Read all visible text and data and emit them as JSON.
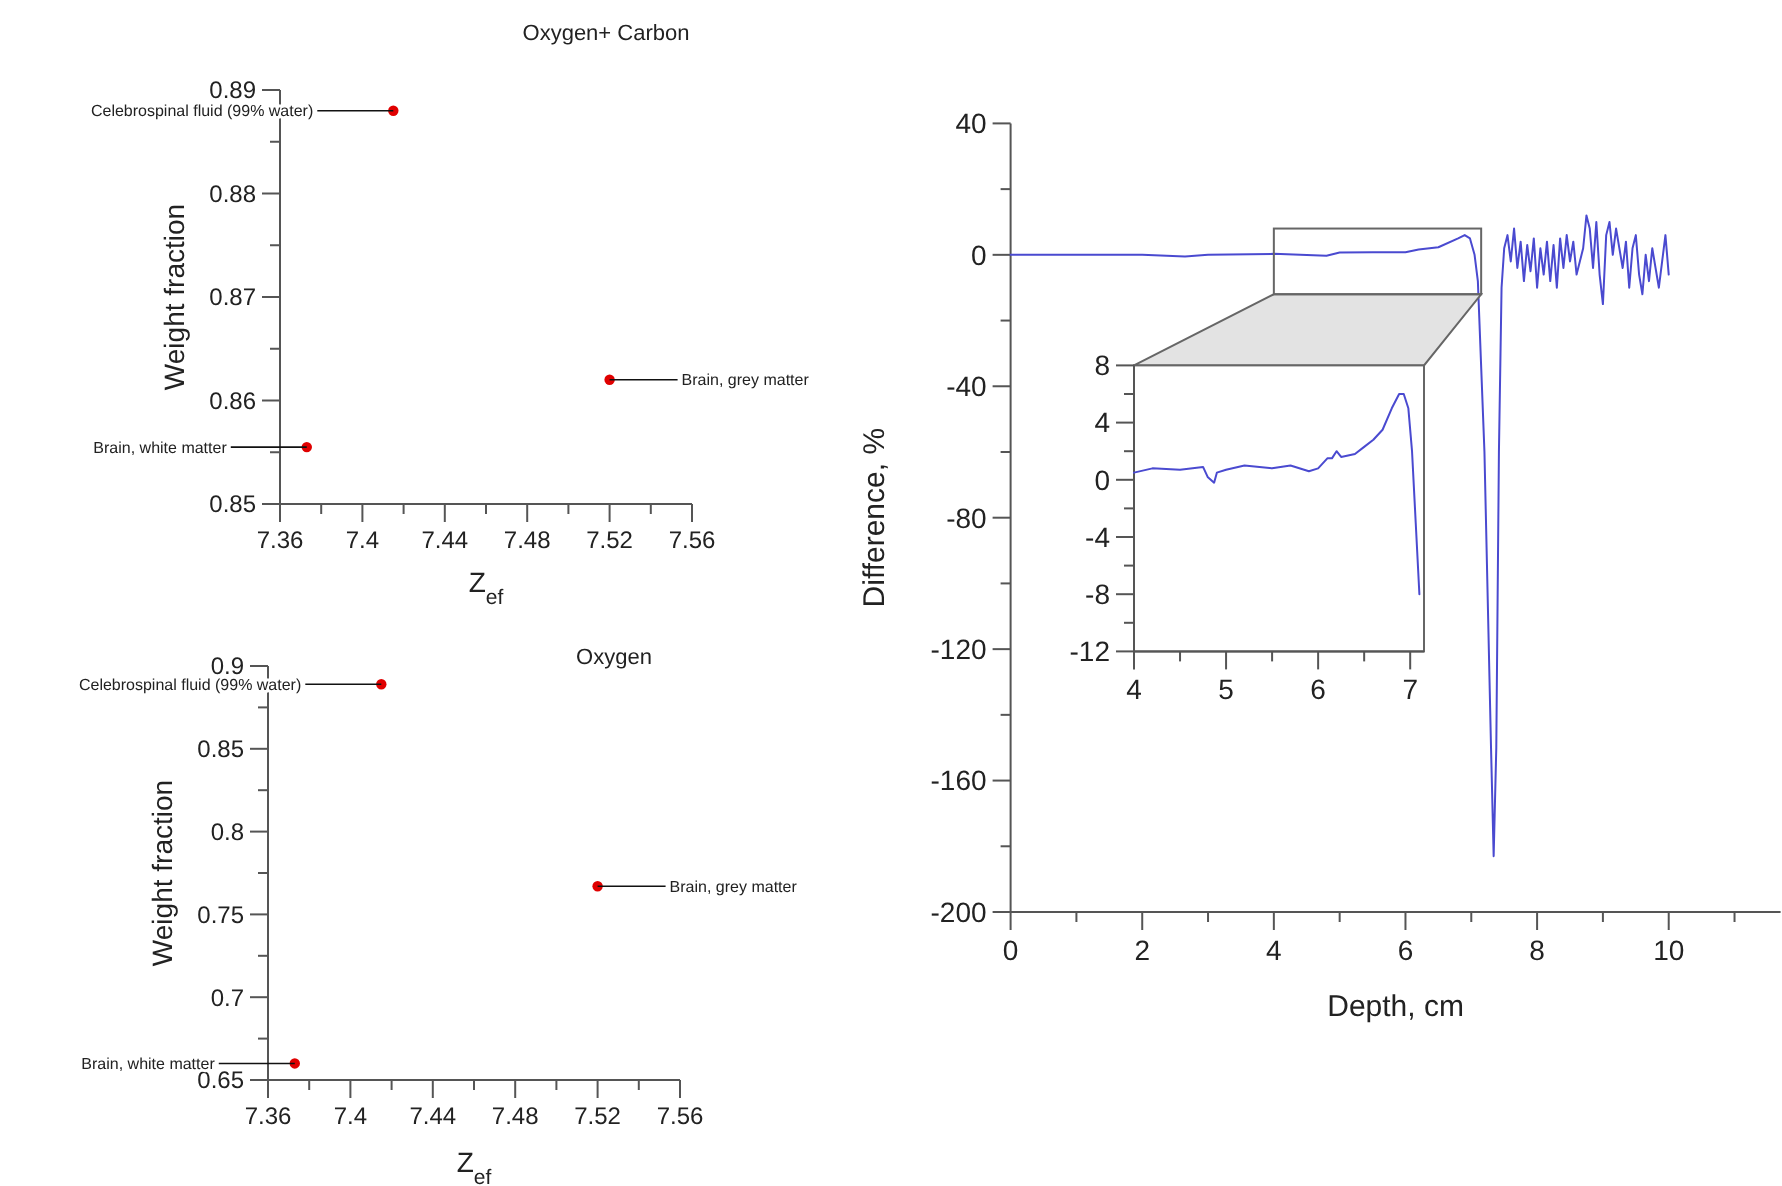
{
  "chart_data": [
    {
      "type": "scatter",
      "title": "Oxygen+ Carbon",
      "xlabel": "Z$_{ef}$",
      "ylabel": "Weight fraction",
      "marker": "circle",
      "color": "#e00000",
      "x": [
        7.415,
        7.52,
        7.373
      ],
      "values": [
        0.888,
        0.862,
        0.8555
      ],
      "xlim": [
        7.36,
        7.56
      ],
      "xticks": [
        7.36,
        {
          "value": 7.38,
          "label": null
        },
        7.4,
        {
          "value": 7.42,
          "label": null
        },
        7.44,
        {
          "value": 7.46,
          "label": null
        },
        7.48,
        {
          "value": 7.5,
          "label": null
        },
        7.52,
        {
          "value": 7.54,
          "label": null
        },
        7.56
      ],
      "ylim": [
        0.85,
        0.89
      ],
      "yticks": [
        0.85,
        {
          "value": 0.855,
          "label": null
        },
        0.86,
        {
          "value": 0.865,
          "label": null
        },
        0.87,
        {
          "value": 0.875,
          "label": null
        },
        0.88,
        {
          "value": 0.885,
          "label": null
        },
        0.89
      ],
      "annotations": [
        {
          "text": "Celebrospinal fluid (99% water)",
          "x": 7.415,
          "y": 0.888
        },
        {
          "text": "Brain, grey matter",
          "x": 7.52,
          "y": 0.862
        },
        {
          "text": "Brain, white matter",
          "x": 7.373,
          "y": 0.8555
        }
      ]
    },
    {
      "type": "scatter",
      "title": "Oxygen",
      "xlabel": "Z$_{ef}$",
      "ylabel": "Weight fraction",
      "marker": "circle",
      "color": "#e00000",
      "x": [
        7.415,
        7.52,
        7.373
      ],
      "values": [
        0.889,
        0.767,
        0.66
      ],
      "xlim": [
        7.36,
        7.56
      ],
      "xticks": [
        7.36,
        {
          "value": 7.38,
          "label": null
        },
        7.4,
        {
          "value": 7.42,
          "label": null
        },
        7.44,
        {
          "value": 7.46,
          "label": null
        },
        7.48,
        {
          "value": 7.5,
          "label": null
        },
        7.52,
        {
          "value": 7.54,
          "label": null
        },
        7.56
      ],
      "ylim": [
        0.65,
        0.9
      ],
      "yticks": [
        0.65,
        {
          "value": 0.675,
          "label": null
        },
        0.7,
        {
          "value": 0.725,
          "label": null
        },
        0.75,
        {
          "value": 0.775,
          "label": null
        },
        0.8,
        {
          "value": 0.825,
          "label": null
        },
        0.85,
        {
          "value": 0.875,
          "label": null
        },
        0.9
      ],
      "annotations": [
        {
          "text": "Celebrospinal fluid (99% water)",
          "x": 7.415,
          "y": 0.889
        },
        {
          "text": "Brain, grey matter",
          "x": 7.52,
          "y": 0.767
        },
        {
          "text": "Brain, white matter",
          "x": 7.373,
          "y": 0.66
        }
      ]
    },
    {
      "type": "line",
      "xlabel": "Depth, cm",
      "ylabel": "Difference, %",
      "color": "#4a4ad0",
      "x": [
        0,
        1,
        2,
        2.65,
        3,
        4,
        4.8,
        5,
        5.5,
        6,
        6.2,
        6.5,
        6.8,
        6.9,
        6.98,
        7.05,
        7.1,
        7.2,
        7.3,
        7.34,
        7.38,
        7.42,
        7.46,
        7.5,
        7.55,
        7.6,
        7.65,
        7.7,
        7.75,
        7.8,
        7.85,
        7.9,
        7.95,
        8,
        8.05,
        8.1,
        8.15,
        8.2,
        8.25,
        8.3,
        8.35,
        8.4,
        8.45,
        8.5,
        8.55,
        8.6,
        8.7,
        8.75,
        8.8,
        8.85,
        8.9,
        8.95,
        9,
        9.05,
        9.1,
        9.15,
        9.2,
        9.3,
        9.35,
        9.4,
        9.45,
        9.5,
        9.55,
        9.6,
        9.65,
        9.7,
        9.75,
        9.8,
        9.85,
        9.9,
        9.95,
        10
      ],
      "values": [
        0,
        0,
        0,
        -0.5,
        0,
        0.3,
        -0.3,
        0.7,
        0.8,
        0.8,
        1.6,
        2.3,
        5,
        6,
        5,
        0,
        -8,
        -60,
        -150,
        -183,
        -150,
        -60,
        -10,
        2,
        6,
        -2,
        8,
        -4,
        4,
        -8,
        3,
        -5,
        5,
        -10,
        2,
        -6,
        4,
        -8,
        3,
        -10,
        5,
        -4,
        6,
        -2,
        4,
        -6,
        2,
        12,
        8,
        -4,
        10,
        -6,
        -15,
        6,
        10,
        0,
        8,
        -4,
        4,
        -10,
        2,
        6,
        -6,
        -12,
        0,
        -8,
        2,
        -4,
        -10,
        -2,
        6,
        -6
      ],
      "xlim": [
        0,
        11.7
      ],
      "xticks": [
        0,
        {
          "value": 1,
          "label": null
        },
        2,
        {
          "value": 3,
          "label": null
        },
        4,
        {
          "value": 5,
          "label": null
        },
        6,
        {
          "value": 7,
          "label": null
        },
        8,
        {
          "value": 9,
          "label": null
        },
        10,
        {
          "value": 11,
          "label": null
        }
      ],
      "ylim": [
        -200,
        40
      ],
      "yticks": [
        -200,
        {
          "value": -180,
          "label": null
        },
        -160,
        {
          "value": -140,
          "label": null
        },
        -120,
        {
          "value": -100,
          "label": null
        },
        -80,
        {
          "value": -60,
          "label": null
        },
        -40,
        {
          "value": -20,
          "label": null
        },
        0,
        {
          "value": 20,
          "label": null
        },
        40
      ]
    },
    {
      "type": "line",
      "color": "#4a4ad0",
      "x": [
        4,
        4.2,
        4.5,
        4.75,
        4.8,
        4.87,
        4.9,
        5,
        5.2,
        5.5,
        5.7,
        5.9,
        6,
        6.1,
        6.15,
        6.2,
        6.25,
        6.4,
        6.5,
        6.6,
        6.7,
        6.8,
        6.88,
        6.93,
        6.98,
        7.02,
        7.06,
        7.1
      ],
      "values": [
        0.5,
        0.8,
        0.7,
        0.9,
        0.2,
        -0.2,
        0.5,
        0.7,
        1,
        0.8,
        1,
        0.6,
        0.8,
        1.5,
        1.5,
        2,
        1.6,
        1.8,
        2.3,
        2.8,
        3.5,
        5,
        6,
        6,
        5,
        2,
        -3,
        -8
      ],
      "xlim": [
        4,
        7.15
      ],
      "xticks": [
        4,
        {
          "value": 4.5,
          "label": null
        },
        5,
        {
          "value": 5.5,
          "label": null
        },
        6,
        {
          "value": 6.5,
          "label": null
        },
        7
      ],
      "ylim": [
        -12,
        8
      ],
      "yticks": [
        -12,
        {
          "value": -10,
          "label": null
        },
        -8,
        {
          "value": -6,
          "label": null
        },
        -4,
        {
          "value": -2,
          "label": null
        },
        0,
        {
          "value": 2,
          "label": null
        },
        4,
        {
          "value": 6,
          "label": null
        },
        8
      ]
    }
  ]
}
